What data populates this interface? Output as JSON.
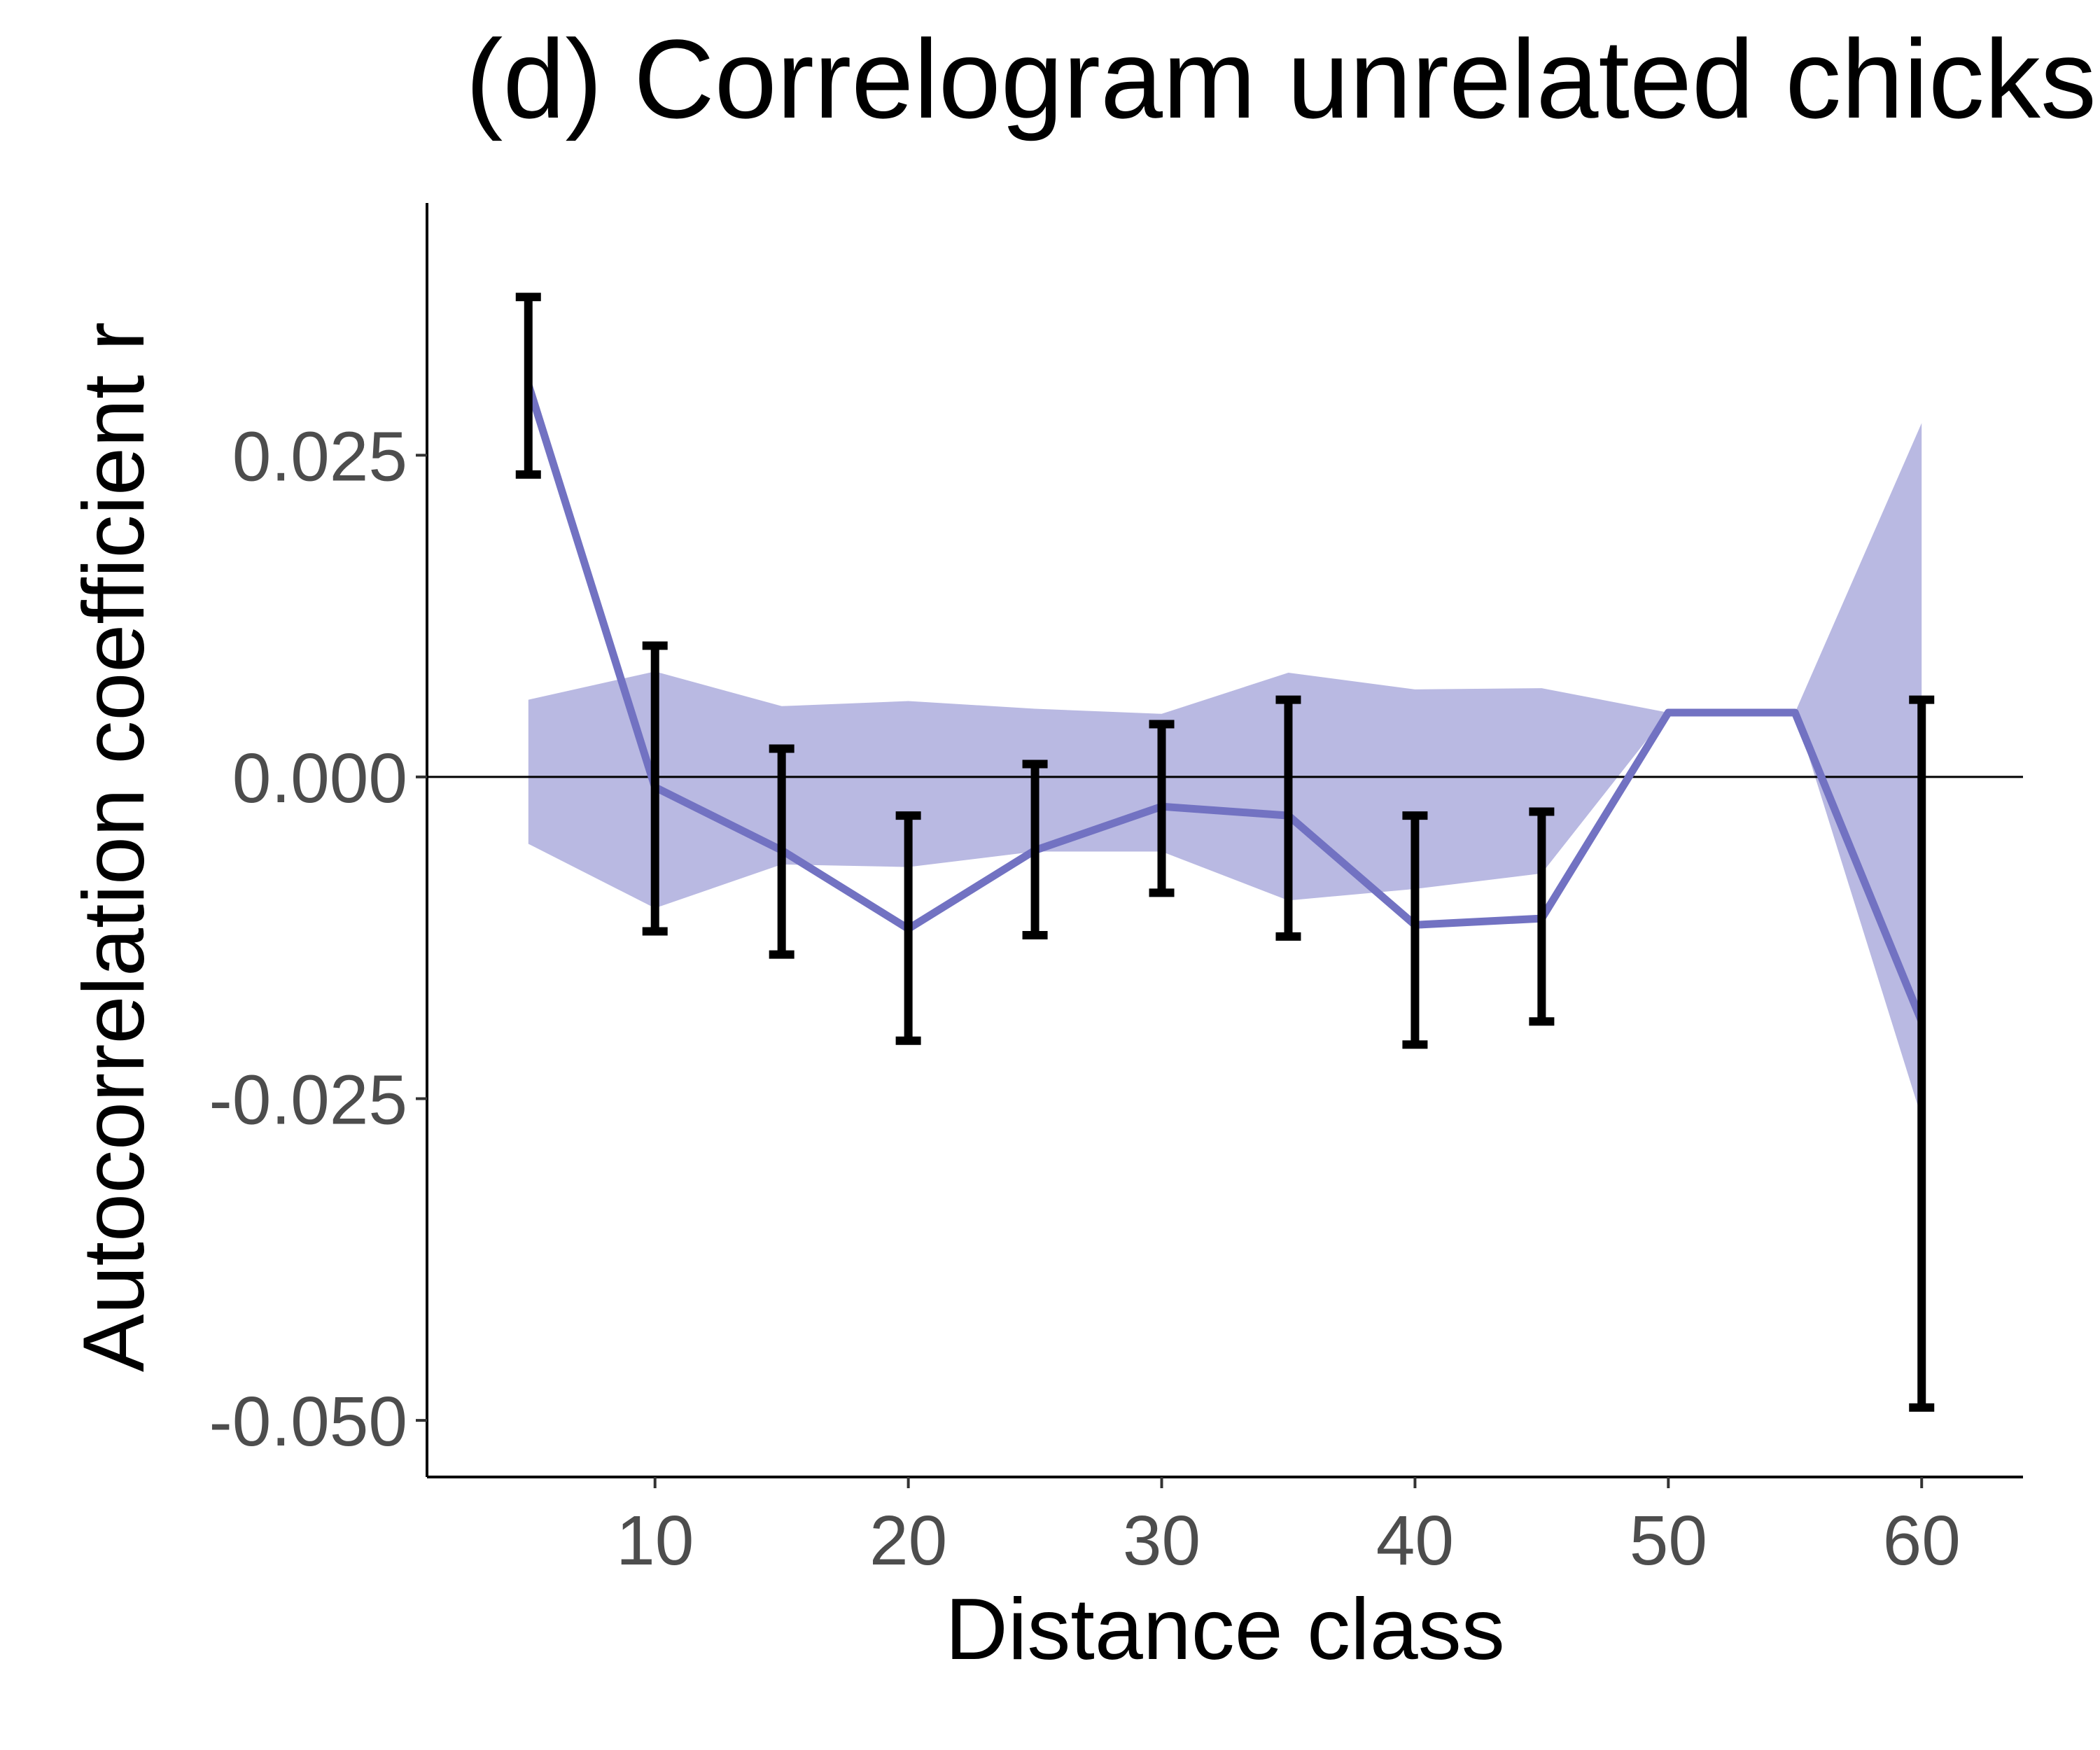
{
  "chart_data": {
    "type": "line",
    "title": "(d) Correlogram unrelated chicks",
    "xlabel": "Distance class",
    "ylabel": "Autocorrelation coefficient r",
    "xlim": [
      1,
      64
    ],
    "ylim": [
      -0.0544,
      0.0446
    ],
    "x_ticks": [
      10,
      20,
      30,
      40,
      50,
      60
    ],
    "x_tick_labels": [
      "10",
      "20",
      "30",
      "40",
      "50",
      "60"
    ],
    "y_ticks": [
      -0.05,
      -0.025,
      0.0,
      0.025
    ],
    "y_tick_labels": [
      "-0.050",
      "-0.025",
      "0.000",
      "0.025"
    ],
    "reference_line_y": 0.0,
    "grid": false,
    "legend": "none",
    "colors": {
      "line": "#7272c2",
      "band": "#b9b9e2",
      "errorbar": "#000000",
      "axis": "#000000"
    },
    "series": [
      {
        "x": [
          5,
          10,
          15,
          20,
          25,
          30,
          35,
          40,
          45,
          50,
          55,
          60
        ],
        "values": [
          0.0305,
          -0.0008,
          -0.0057,
          -0.0118,
          -0.0057,
          -0.0023,
          -0.003,
          -0.0115,
          -0.011,
          0.005,
          0.005,
          -0.019
        ]
      }
    ],
    "null_envelope": {
      "x": [
        5,
        10,
        15,
        20,
        25,
        30,
        35,
        40,
        45,
        50,
        55,
        60
      ],
      "upper": [
        0.006,
        0.0082,
        0.0055,
        0.0059,
        0.0053,
        0.0049,
        0.0081,
        0.0068,
        0.0069,
        0.005,
        0.005,
        0.0275
      ],
      "lower": [
        -0.0052,
        -0.0102,
        -0.0068,
        -0.007,
        -0.0058,
        -0.0058,
        -0.0096,
        -0.0087,
        -0.0075,
        0.005,
        0.005,
        -0.0265
      ]
    },
    "error_bars": {
      "x": [
        5,
        10,
        15,
        20,
        25,
        30,
        35,
        40,
        45,
        60
      ],
      "upper": [
        0.0373,
        0.0102,
        0.0022,
        -0.003,
        0.001,
        0.0041,
        0.006,
        -0.003,
        -0.0027,
        0.006
      ],
      "lower": [
        0.0235,
        -0.012,
        -0.0138,
        -0.0205,
        -0.0123,
        -0.009,
        -0.0124,
        -0.0208,
        -0.019,
        -0.049
      ]
    }
  }
}
